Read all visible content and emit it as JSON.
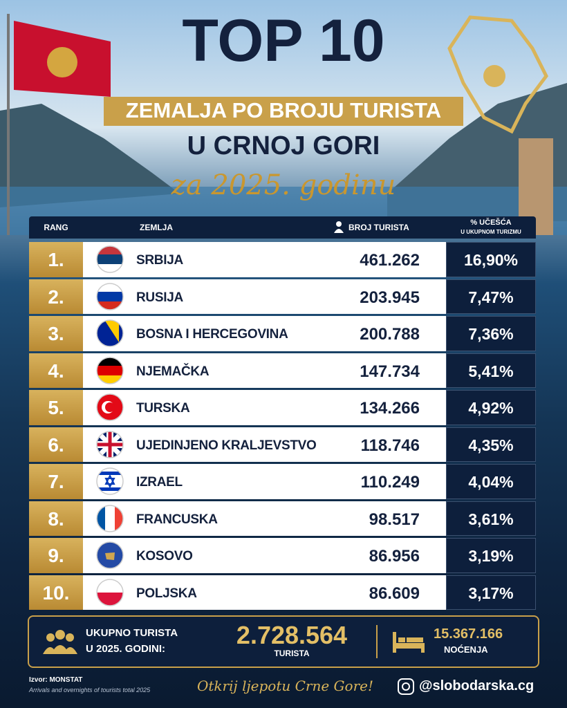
{
  "header": {
    "title": "TOP 10",
    "banner": "ZEMALJA PO BROJU TURISTA",
    "subtitle": "U CRNOJ GORI",
    "year_line": "za 2025. godinu"
  },
  "table": {
    "columns": [
      "RANG",
      "ZEMLJA",
      "BROJ TURISTA",
      {
        "label": "% UČEŠĆA",
        "sub": "U UKUPNOM TURIZMU"
      }
    ],
    "rows": [
      [
        "1.",
        "SRBIJA",
        "461.262",
        "16,90%"
      ],
      [
        "2.",
        "RUSIJA",
        "203.945",
        "7,47%"
      ],
      [
        "3.",
        "BOSNA I HERCEGOVINA",
        "200.788",
        "7,36%"
      ],
      [
        "4.",
        "NJEMAČKA",
        "147.734",
        "5,41%"
      ],
      [
        "5.",
        "TURSKA",
        "134.266",
        "4,92%"
      ],
      [
        "6.",
        "UJEDINJENO KRALJEVSTVO",
        "118.746",
        "4,35%"
      ],
      [
        "7.",
        "IZRAEL",
        "110.249",
        "4,04%"
      ],
      [
        "8.",
        "FRANCUSKA",
        "98.517",
        "3,61%"
      ],
      [
        "9.",
        "KOSOVO",
        "86.956",
        "3,19%"
      ],
      [
        "10.",
        "POLJSKA",
        "86.609",
        "3,17%"
      ]
    ]
  },
  "summary": {
    "label_line1": "UKUPNO TURISTA",
    "label_line2": "U 2025. GODINI:",
    "total": "2.728.564",
    "total_unit": "TURISTA",
    "nights": "15.367.166",
    "nights_unit": "NOĆENJA"
  },
  "footer": {
    "source": "Izvor: MONSTAT",
    "source_note": "Arrivals and overnights of tourists total 2025",
    "slogan": "Otkrij ljepotu Crne Gore!",
    "handle": "@slobodarska.cg"
  }
}
